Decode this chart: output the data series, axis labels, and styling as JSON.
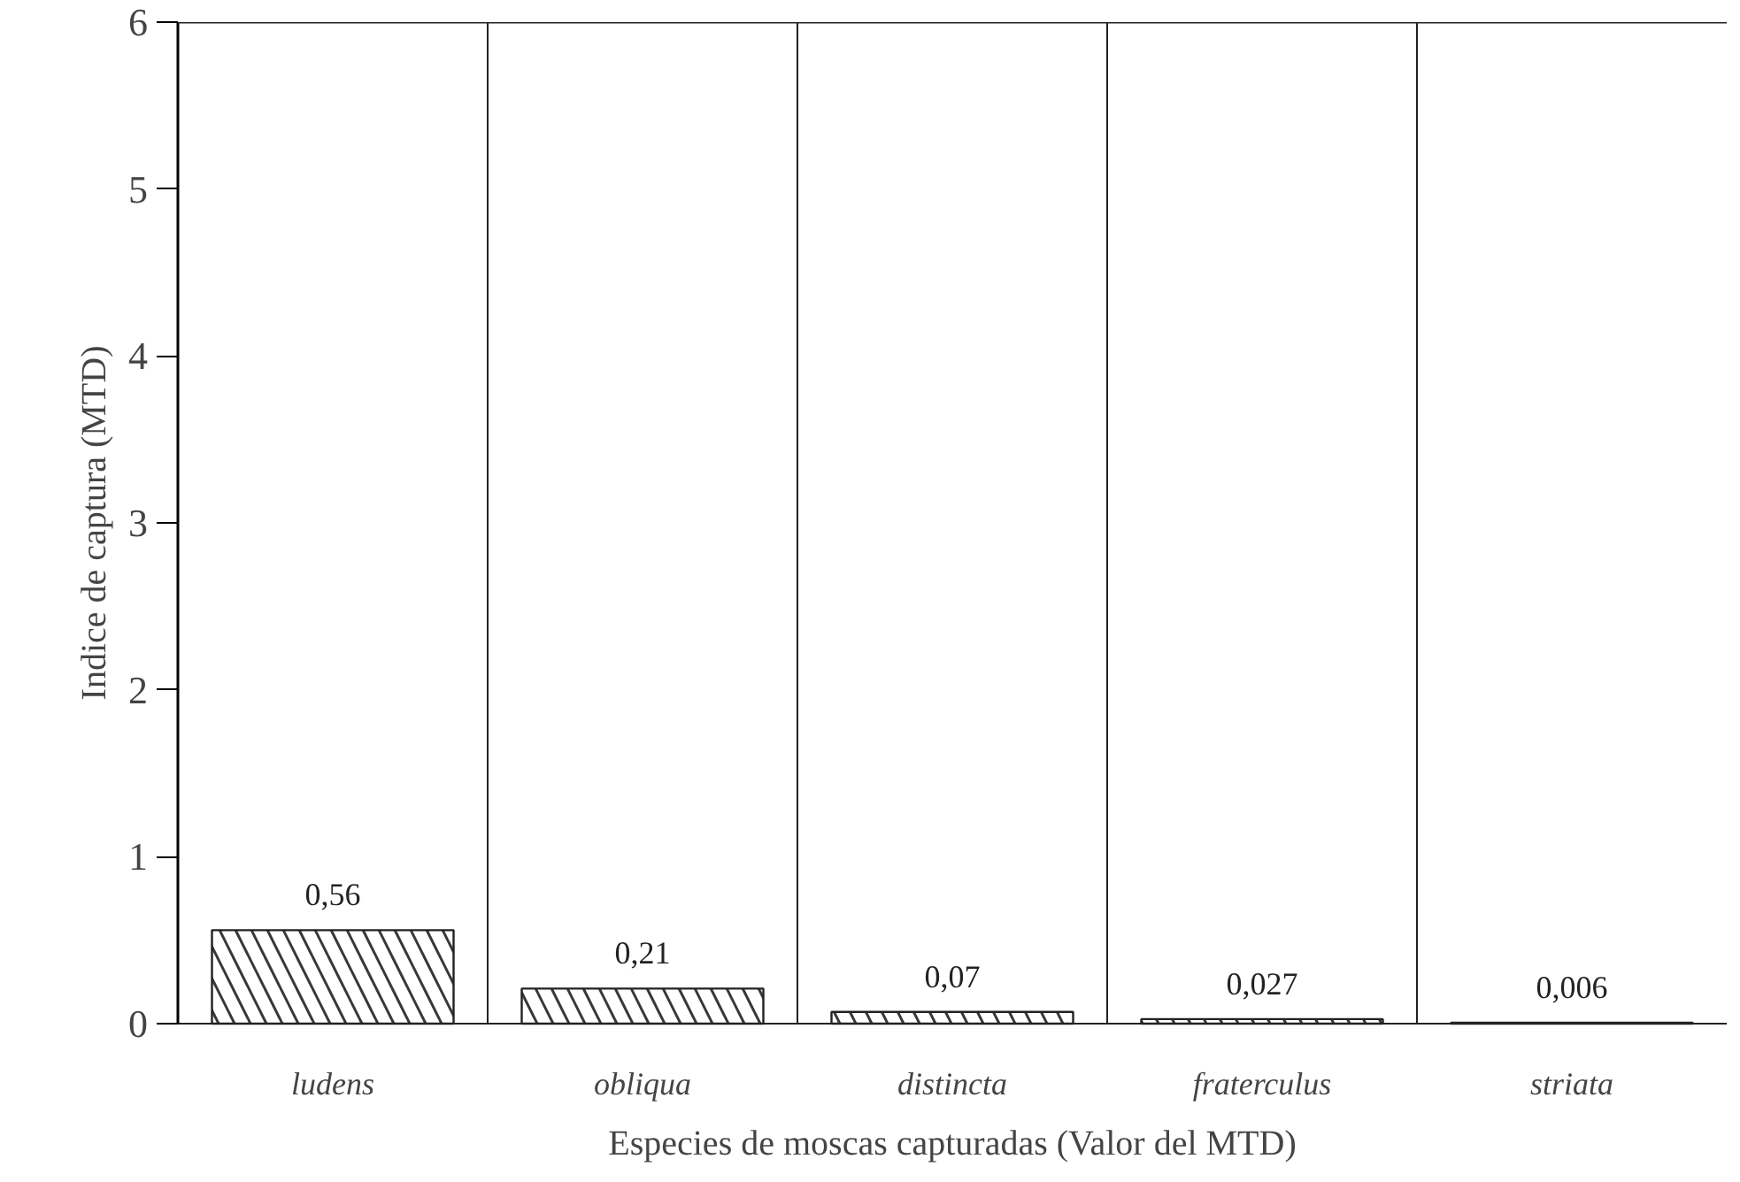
{
  "chart_data": {
    "type": "bar",
    "xlabel": "Especies de moscas capturadas (Valor del MTD)",
    "ylabel": "Indice de captura (MTD)",
    "categories": [
      "ludens",
      "obliqua",
      "distincta",
      "fraterculus",
      "striata"
    ],
    "values": [
      0.56,
      0.21,
      0.07,
      0.027,
      0.006
    ],
    "value_labels": [
      "0,56",
      "0,21",
      "0,07",
      "0,027",
      "0,006"
    ],
    "color": "#ffffff",
    "ylim": [
      0,
      6
    ],
    "yticks": [
      0,
      1,
      2,
      3,
      4,
      5,
      6
    ],
    "grid": "x"
  }
}
